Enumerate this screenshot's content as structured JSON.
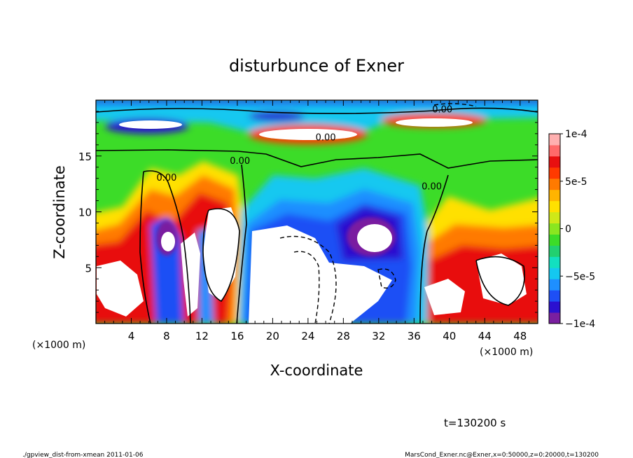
{
  "chart_data": {
    "type": "heatmap",
    "title": "disturbunce of Exner",
    "xlabel": "X-coordinate",
    "ylabel": "Z-coordinate",
    "x_unit_left": "(×1000 m)",
    "x_unit_right": "(×1000 m)",
    "xlim": [
      0,
      50
    ],
    "ylim": [
      0,
      20
    ],
    "x_ticks": [
      4,
      8,
      12,
      16,
      20,
      24,
      28,
      32,
      36,
      40,
      44,
      48
    ],
    "y_ticks": [
      5,
      10,
      15
    ],
    "colorbar": {
      "range": [
        -0.0001,
        0.0001
      ],
      "ticks": [
        {
          "value": 0.0001,
          "label": "1e-4"
        },
        {
          "value": 5e-05,
          "label": "5e-5"
        },
        {
          "value": 0,
          "label": "0"
        },
        {
          "value": -5e-05,
          "label": "−5e-5"
        },
        {
          "value": -0.0001,
          "label": "−1e-4"
        }
      ],
      "colors": [
        "#7a1fa0",
        "#2b10d0",
        "#1e4ff5",
        "#1e8fff",
        "#14c8f0",
        "#12e0c0",
        "#22d070",
        "#3cdc28",
        "#8ae620",
        "#cfe818",
        "#ffe000",
        "#ffb400",
        "#ff7a00",
        "#ff3a00",
        "#e81010",
        "#ff6a6a",
        "#ffb0b0"
      ]
    },
    "contour_labels": [
      {
        "text": "0.00",
        "x": 16.3,
        "z": 14.3
      },
      {
        "text": "0.00",
        "x": 8.0,
        "z": 12.8
      },
      {
        "text": "0.00",
        "x": 26.0,
        "z": 16.4
      },
      {
        "text": "0.00",
        "x": 39.2,
        "z": 18.9
      },
      {
        "text": "0.00",
        "x": 38.0,
        "z": 12.0
      }
    ],
    "annotation": "t=130200 s"
  },
  "footer": {
    "left": "./gpview_dist-from-xmean  2011-01-06",
    "right": "MarsCond_Exner.nc@Exner,x=0:50000,z=0:20000,t=130200"
  }
}
